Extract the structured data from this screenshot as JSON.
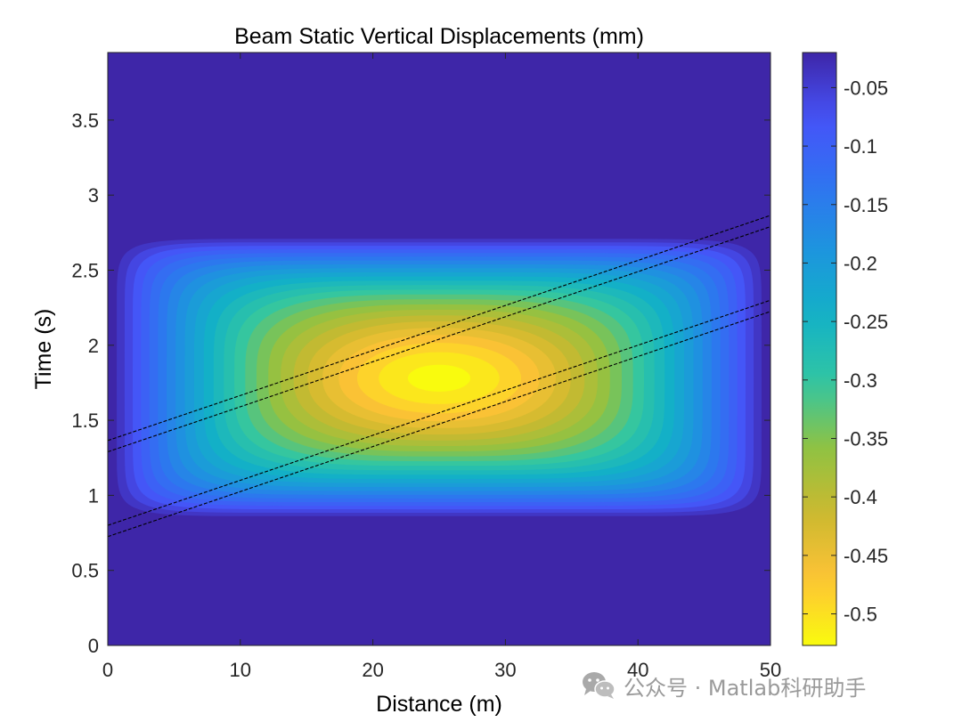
{
  "chart_data": {
    "type": "heatmap",
    "subtype": "filled-contour",
    "title": "Beam Static Vertical Displacements (mm)",
    "xlabel": "Distance (m)",
    "ylabel": "Time (s)",
    "xlim": [
      0,
      50
    ],
    "ylim": [
      0,
      3.95
    ],
    "xticks": [
      0,
      10,
      20,
      30,
      40,
      50
    ],
    "yticks": [
      0,
      0.5,
      1,
      1.5,
      2,
      2.5,
      3,
      3.5
    ],
    "colorbar": {
      "label": "",
      "lim": [
        -0.527,
        -0.02
      ],
      "ticks": [
        -0.05,
        -0.1,
        -0.15,
        -0.2,
        -0.25,
        -0.3,
        -0.35,
        -0.4,
        -0.45,
        -0.5
      ],
      "colormap": "parula",
      "colors": [
        "#f9fb0e",
        "#fec336",
        "#ccb92f",
        "#8fc243",
        "#31c6a3",
        "#13b1c6",
        "#1d95de",
        "#2f73f1",
        "#4653f8",
        "#3e26a8"
      ],
      "levels": 25
    },
    "field": {
      "description": "Displacement under a moving load; zero outside the loaded interval",
      "peak_value": -0.527,
      "peak_location": {
        "x": 25,
        "t": 1.78
      },
      "loaded_time_interval": [
        0.85,
        2.72
      ],
      "support_span": [
        0,
        50
      ]
    },
    "lines": [
      {
        "style": "dashed",
        "color": "#000000",
        "x": [
          0,
          50
        ],
        "y": [
          1.365,
          2.865
        ]
      },
      {
        "style": "dashed",
        "color": "#000000",
        "x": [
          0,
          50
        ],
        "y": [
          1.29,
          2.79
        ]
      },
      {
        "style": "dashed",
        "color": "#000000",
        "x": [
          0,
          50
        ],
        "y": [
          0.8,
          2.3
        ]
      },
      {
        "style": "dashed",
        "color": "#000000",
        "x": [
          0,
          50
        ],
        "y": [
          0.725,
          2.225
        ]
      }
    ],
    "grid": false,
    "legend": "none"
  },
  "watermark": {
    "text": "公众号 · Matlab科研助手",
    "icon": "wechat-icon"
  }
}
